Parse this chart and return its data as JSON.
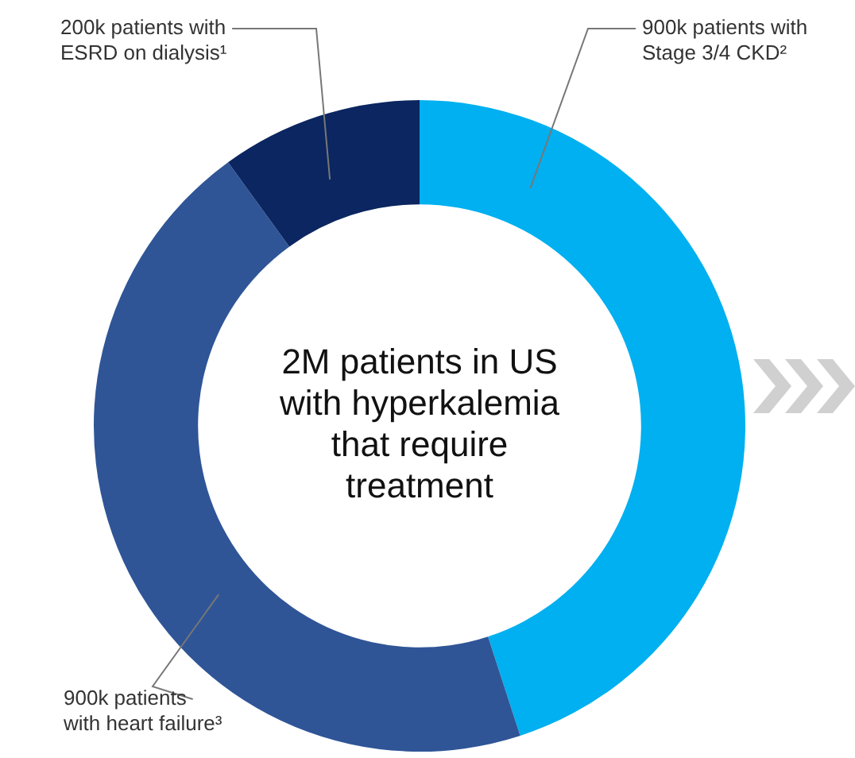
{
  "chart_data": {
    "type": "donut",
    "categories": [
      "900k patients with\nStage 3/4 CKD²",
      "900k patients\nwith heart failure³",
      "200k patients with\nESRD on dialysis¹"
    ],
    "values": [
      900,
      900,
      200
    ],
    "colors": [
      "#00b0f0",
      "#2f5597",
      "#0b2660"
    ],
    "legend": false,
    "annotations": [
      "2M patients in US\nwith hyperkalemia\nthat require\ntreatment"
    ]
  }
}
